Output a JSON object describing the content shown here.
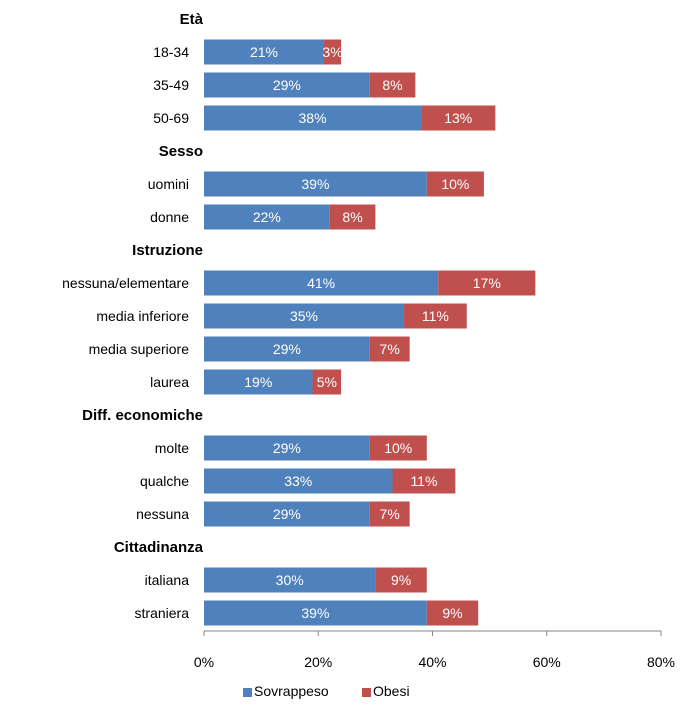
{
  "chart_data": {
    "type": "bar",
    "orientation": "horizontal",
    "stacked": true,
    "xlim": [
      0,
      80
    ],
    "x_ticks": [
      "0%",
      "20%",
      "40%",
      "60%",
      "80%"
    ],
    "grid": false,
    "legend_position": "bottom",
    "series": [
      {
        "name": "Sovrappeso",
        "color": "#4f81bd"
      },
      {
        "name": "Obesi",
        "color": "#c0504d"
      }
    ],
    "groups": [
      {
        "label": "Età",
        "rows": [
          {
            "label": "18-34",
            "values": [
              21,
              3
            ]
          },
          {
            "label": "35-49",
            "values": [
              29,
              8
            ]
          },
          {
            "label": "50-69",
            "values": [
              38,
              13
            ]
          }
        ]
      },
      {
        "label": "Sesso",
        "rows": [
          {
            "label": "uomini",
            "values": [
              39,
              10
            ]
          },
          {
            "label": "donne",
            "values": [
              22,
              8
            ]
          }
        ]
      },
      {
        "label": "Istruzione",
        "rows": [
          {
            "label": "nessuna/elementare",
            "values": [
              41,
              17
            ]
          },
          {
            "label": "media inferiore",
            "values": [
              35,
              11
            ]
          },
          {
            "label": "media superiore",
            "values": [
              29,
              7
            ]
          },
          {
            "label": "laurea",
            "values": [
              19,
              5
            ]
          }
        ]
      },
      {
        "label": "Diff. economiche",
        "rows": [
          {
            "label": "molte",
            "values": [
              29,
              10
            ]
          },
          {
            "label": "qualche",
            "values": [
              33,
              11
            ]
          },
          {
            "label": "nessuna",
            "values": [
              29,
              7
            ]
          }
        ]
      },
      {
        "label": "Cittadinanza",
        "rows": [
          {
            "label": "italiana",
            "values": [
              30,
              9
            ]
          },
          {
            "label": "straniera",
            "values": [
              39,
              9
            ]
          }
        ]
      }
    ]
  }
}
